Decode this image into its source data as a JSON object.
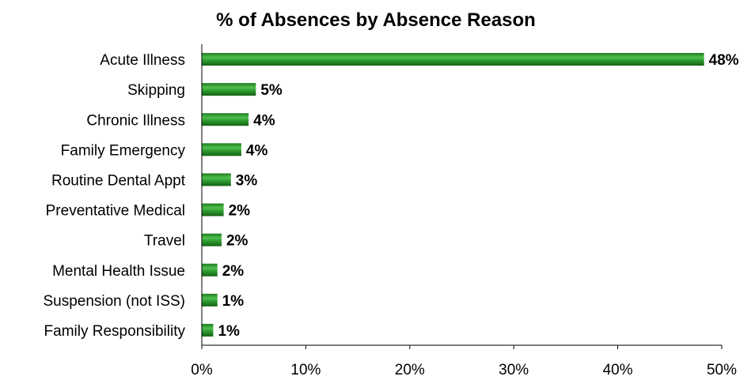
{
  "chart_data": {
    "type": "bar",
    "orientation": "horizontal",
    "title": "% of Absences by Absence Reason",
    "xlabel": "",
    "ylabel": "",
    "categories": [
      "Acute Illness",
      "Skipping",
      "Chronic Illness",
      "Family Emergency",
      "Routine Dental Appt",
      "Preventative Medical",
      "Travel",
      "Mental Health Issue",
      "Suspension (not ISS)",
      "Family Responsibility"
    ],
    "values": [
      48.3,
      5.2,
      4.5,
      3.8,
      2.8,
      2.1,
      1.9,
      1.5,
      1.5,
      1.1
    ],
    "data_labels": [
      "48%",
      "5%",
      "4%",
      "4%",
      "3%",
      "2%",
      "2%",
      "2%",
      "1%",
      "1%"
    ],
    "xlim": [
      0,
      50
    ],
    "xticks": [
      0,
      10,
      20,
      30,
      40,
      50
    ],
    "xtick_labels": [
      "0%",
      "10%",
      "20%",
      "30%",
      "40%",
      "50%"
    ],
    "grid": false,
    "legend": "none",
    "bar_color": "#2e9a2e"
  }
}
